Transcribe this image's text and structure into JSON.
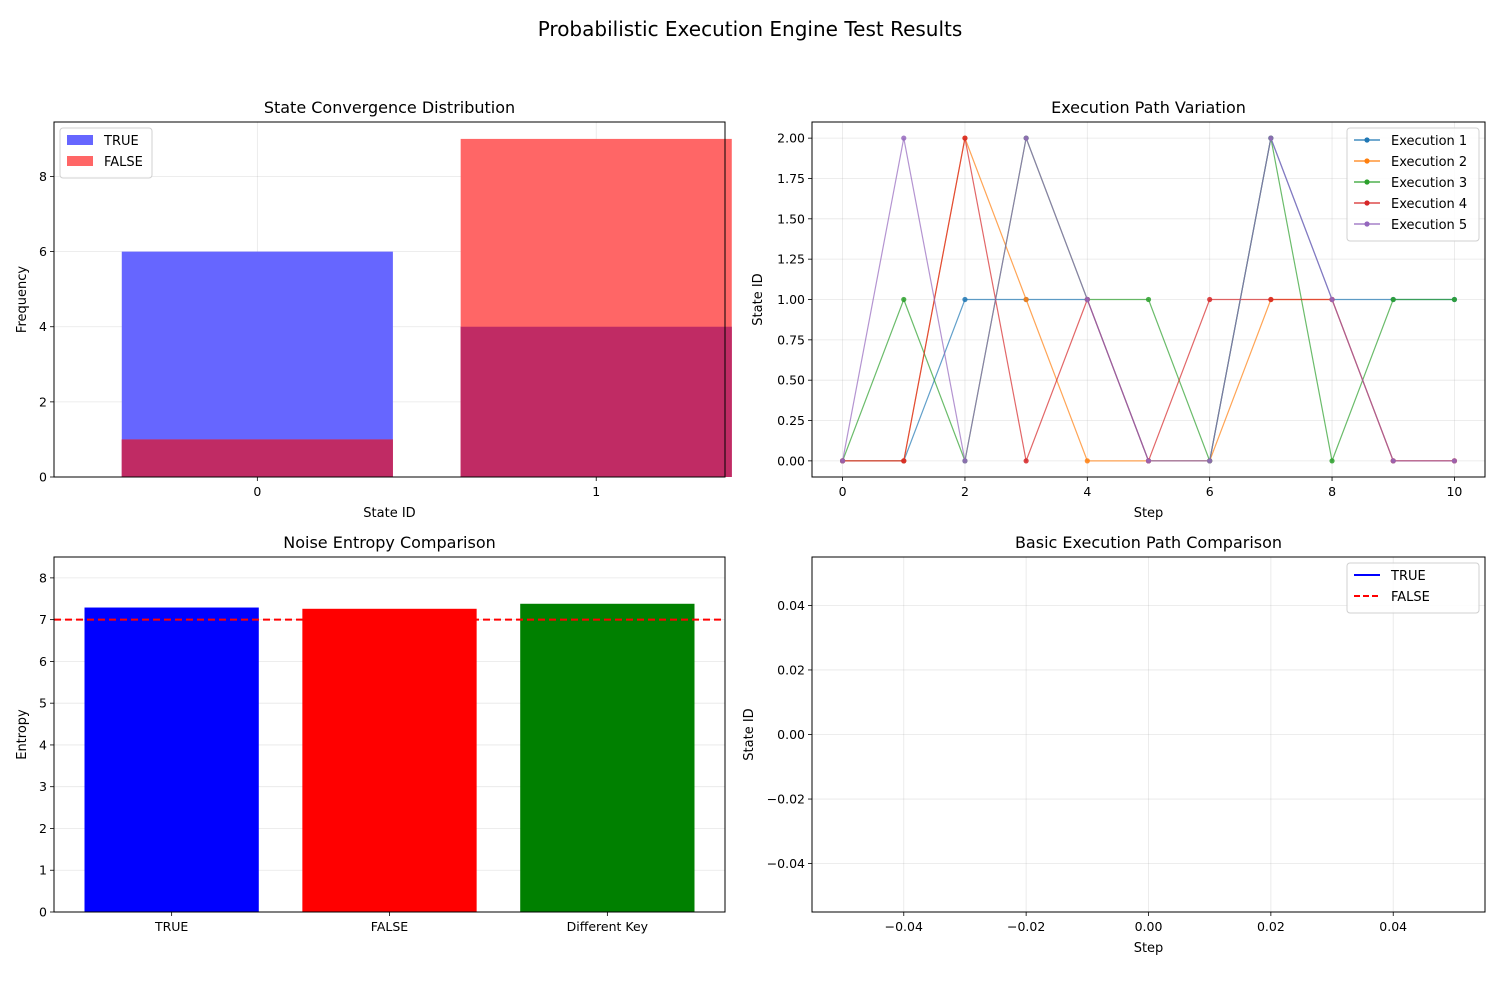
{
  "suptitle": "Probabilistic Execution Engine Test Results",
  "chart_data": [
    {
      "type": "bar",
      "title": "State Convergence Distribution",
      "xlabel": "State ID",
      "ylabel": "Frequency",
      "categories": [
        "0",
        "1"
      ],
      "series": [
        {
          "name": "TRUE",
          "values": [
            6,
            4
          ],
          "color": "#6666ff"
        },
        {
          "name": "FALSE",
          "values": [
            1,
            9
          ],
          "color": "#ff6666"
        }
      ],
      "overlap_color": "#c02b64",
      "ylim": [
        0,
        9.45
      ],
      "yticks": [
        0,
        2,
        4,
        6,
        8
      ],
      "grid": true,
      "legend": "top-left"
    },
    {
      "type": "line",
      "title": "Execution Path Variation",
      "xlabel": "Step",
      "ylabel": "State ID",
      "x": [
        0,
        1,
        2,
        3,
        4,
        5,
        6,
        7,
        8,
        9,
        10
      ],
      "series": [
        {
          "name": "Execution 1",
          "values": [
            0,
            0,
            1,
            1,
            1,
            0,
            0,
            2,
            1,
            1,
            1
          ],
          "color": "#1f77b4"
        },
        {
          "name": "Execution 2",
          "values": [
            0,
            0,
            2,
            1,
            0,
            0,
            0,
            1,
            1,
            0,
            0
          ],
          "color": "#ff7f0e"
        },
        {
          "name": "Execution 3",
          "values": [
            0,
            1,
            0,
            2,
            1,
            1,
            0,
            2,
            0,
            1,
            1
          ],
          "color": "#2ca02c"
        },
        {
          "name": "Execution 4",
          "values": [
            0,
            0,
            2,
            0,
            1,
            0,
            1,
            1,
            1,
            0,
            0
          ],
          "color": "#d62728"
        },
        {
          "name": "Execution 5",
          "values": [
            0,
            2,
            0,
            2,
            1,
            0,
            0,
            2,
            1,
            0,
            0
          ],
          "color": "#9467bd"
        }
      ],
      "xlim": [
        -0.5,
        10.5
      ],
      "ylim": [
        -0.1,
        2.1
      ],
      "xticks": [
        0,
        2,
        4,
        6,
        8,
        10
      ],
      "yticks": [
        "0.00",
        "0.25",
        "0.50",
        "0.75",
        "1.00",
        "1.25",
        "1.50",
        "1.75",
        "2.00"
      ],
      "grid": true,
      "legend": "top-right"
    },
    {
      "type": "bar",
      "title": "Noise Entropy Comparison",
      "xlabel": "",
      "ylabel": "Entropy",
      "categories": [
        "TRUE",
        "FALSE",
        "Different Key"
      ],
      "values": [
        7.29,
        7.26,
        7.38
      ],
      "colors": [
        "#0000ff",
        "#ff0000",
        "#008000"
      ],
      "reference_line": {
        "value": 7,
        "color": "#ff0000",
        "style": "dashed"
      },
      "ylim": [
        0,
        8.5
      ],
      "yticks": [
        0,
        1,
        2,
        3,
        4,
        5,
        6,
        7,
        8
      ],
      "grid": true
    },
    {
      "type": "line",
      "title": "Basic Execution Path Comparison",
      "xlabel": "Step",
      "ylabel": "State ID",
      "series": [
        {
          "name": "TRUE",
          "values": [],
          "color": "#0000ff",
          "style": "solid"
        },
        {
          "name": "FALSE",
          "values": [],
          "color": "#ff0000",
          "style": "dashed"
        }
      ],
      "xlim": [
        -0.055,
        0.055
      ],
      "ylim": [
        -0.055,
        0.055
      ],
      "xticks": [
        "−0.04",
        "−0.02",
        "0.00",
        "0.02",
        "0.04"
      ],
      "yticks": [
        "−0.04",
        "−0.02",
        "0.00",
        "0.02",
        "0.04"
      ],
      "grid": true,
      "legend": "top-right"
    }
  ]
}
